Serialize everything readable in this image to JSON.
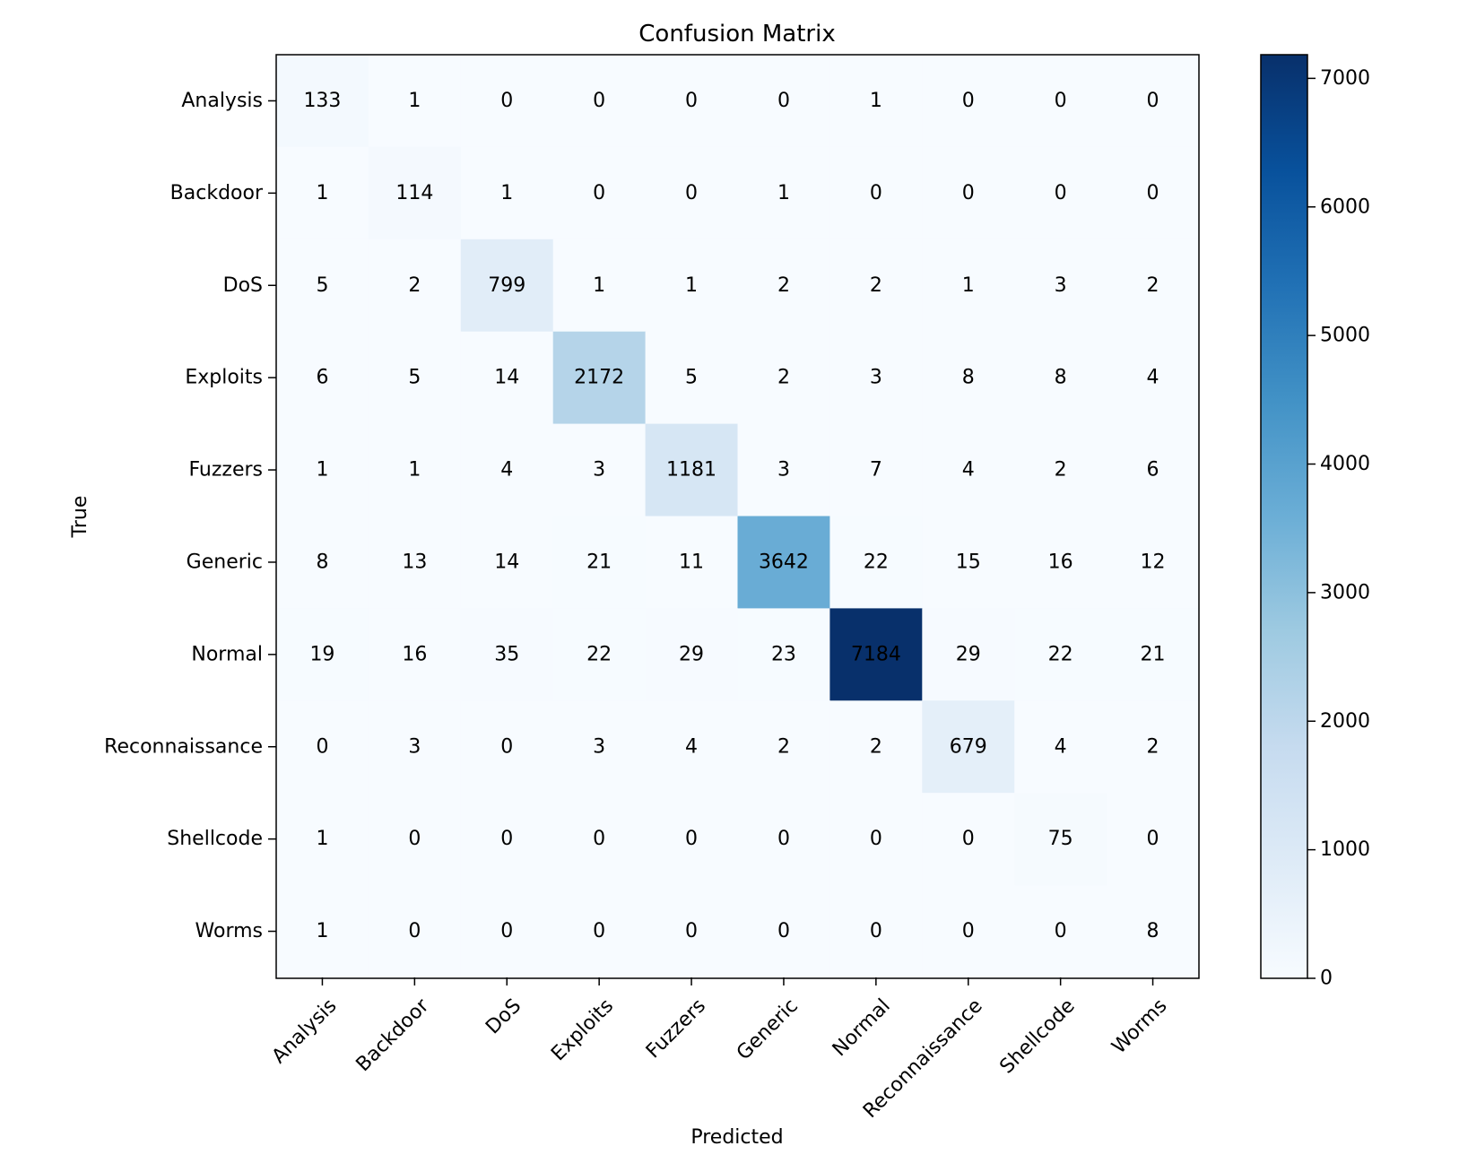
{
  "chart_data": {
    "type": "heatmap",
    "title": "Confusion Matrix",
    "xlabel": "Predicted",
    "ylabel": "True",
    "categories": [
      "Analysis",
      "Backdoor",
      "DoS",
      "Exploits",
      "Fuzzers",
      "Generic",
      "Normal",
      "Reconnaissance",
      "Shellcode",
      "Worms"
    ],
    "matrix": [
      [
        133,
        1,
        0,
        0,
        0,
        0,
        1,
        0,
        0,
        0
      ],
      [
        1,
        114,
        1,
        0,
        0,
        1,
        0,
        0,
        0,
        0
      ],
      [
        5,
        2,
        799,
        1,
        1,
        2,
        2,
        1,
        3,
        2
      ],
      [
        6,
        5,
        14,
        2172,
        5,
        2,
        3,
        8,
        8,
        4
      ],
      [
        1,
        1,
        4,
        3,
        1181,
        3,
        7,
        4,
        2,
        6
      ],
      [
        8,
        13,
        14,
        21,
        11,
        3642,
        22,
        15,
        16,
        12
      ],
      [
        19,
        16,
        35,
        22,
        29,
        23,
        7184,
        29,
        22,
        21
      ],
      [
        0,
        3,
        0,
        3,
        4,
        2,
        2,
        679,
        4,
        2
      ],
      [
        1,
        0,
        0,
        0,
        0,
        0,
        0,
        0,
        75,
        0
      ],
      [
        1,
        0,
        0,
        0,
        0,
        0,
        0,
        0,
        0,
        8
      ]
    ],
    "colormap": "Blues",
    "vmin": 0,
    "vmax": 7184,
    "colorbar_ticks": [
      0,
      1000,
      2000,
      3000,
      4000,
      5000,
      6000,
      7000
    ],
    "grid": false
  }
}
